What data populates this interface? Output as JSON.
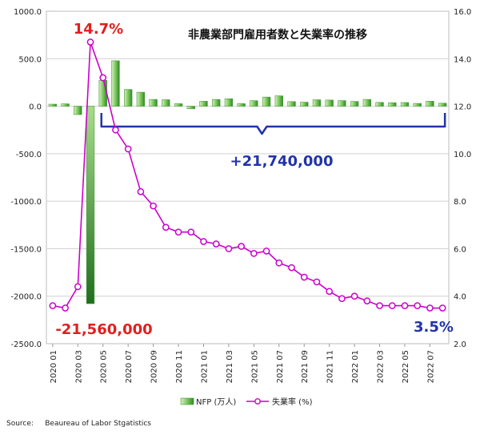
{
  "chart_data": {
    "type": "bar+line",
    "title": "非農業部門雇用者数と失業率の推移",
    "categories": [
      "2020 01",
      "2020 02",
      "2020 03",
      "2020 04",
      "2020 05",
      "2020 06",
      "2020 07",
      "2020 08",
      "2020 09",
      "2020 10",
      "2020 11",
      "2020 12",
      "2021 01",
      "2021 02",
      "2021 03",
      "2021 04",
      "2021 05",
      "2021 06",
      "2021 07",
      "2021 08",
      "2021 09",
      "2021 10",
      "2021 11",
      "2021 12",
      "2022 01",
      "2022 02",
      "2022 03",
      "2022 04",
      "2022 05",
      "2022 06",
      "2022 07",
      "2022 08"
    ],
    "x_tick_labels": [
      "2020 01",
      "2020 03",
      "2020 05",
      "2020 07",
      "2020 09",
      "2020 11",
      "2021 01",
      "2021 03",
      "2021 05",
      "2021 07",
      "2021 09",
      "2021 11",
      "2022 01",
      "2022 03",
      "2022 05",
      "2022 07"
    ],
    "series": [
      {
        "name": "NFP (万人)",
        "type": "bar",
        "axis": "left",
        "values": [
          21.4,
          25.1,
          -88.1,
          -2078.7,
          272.5,
          478.1,
          176.1,
          147.2,
          71.6,
          68.0,
          26.4,
          -26.8,
          52.0,
          71.0,
          78.5,
          26.9,
          58.3,
          96.2,
          108.8,
          48.3,
          42.4,
          67.7,
          64.7,
          58.8,
          50.4,
          71.4,
          39.8,
          36.8,
          38.6,
          29.3,
          52.6,
          31.5
        ],
        "color": "#6abf4b"
      },
      {
        "name": "失業率 (%)",
        "type": "line",
        "axis": "right",
        "values": [
          3.6,
          3.5,
          4.4,
          14.7,
          13.2,
          11.0,
          10.2,
          8.4,
          7.8,
          6.9,
          6.7,
          6.7,
          6.3,
          6.2,
          6.0,
          6.1,
          5.8,
          5.9,
          5.4,
          5.2,
          4.8,
          4.6,
          4.2,
          3.9,
          4.0,
          3.8,
          3.6,
          3.6,
          3.6,
          3.6,
          3.5,
          3.5
        ],
        "color": "#cc00cc"
      }
    ],
    "y_left": {
      "ticks": [
        "1000.0",
        "500.0",
        "0.0",
        "-500.0",
        "-1000.0",
        "-1500.0",
        "-2000.0",
        "-2500.0"
      ],
      "range": [
        -2500,
        1000
      ]
    },
    "y_right": {
      "ticks": [
        "16.0",
        "14.0",
        "12.0",
        "10.0",
        "8.0",
        "6.0",
        "4.0",
        "2.0"
      ],
      "range": [
        2,
        16
      ]
    },
    "annotations": {
      "peak_rate": "14.7%",
      "drop": "-21,560,000",
      "recovery": "+21,740,000",
      "latest_rate": "3.5%"
    },
    "legend": {
      "placement": "bottom",
      "bar_label": "NFP (万人)",
      "line_label": "失業率 (%)"
    },
    "source": "Source:     Beaureau of Labor Stgatistics",
    "colors": {
      "bar": "#6abf4b",
      "line": "#cc00cc",
      "grid": "#d0d0d0",
      "bracket": "#2233aa",
      "red": "#e02020",
      "blue": "#2233aa"
    }
  }
}
